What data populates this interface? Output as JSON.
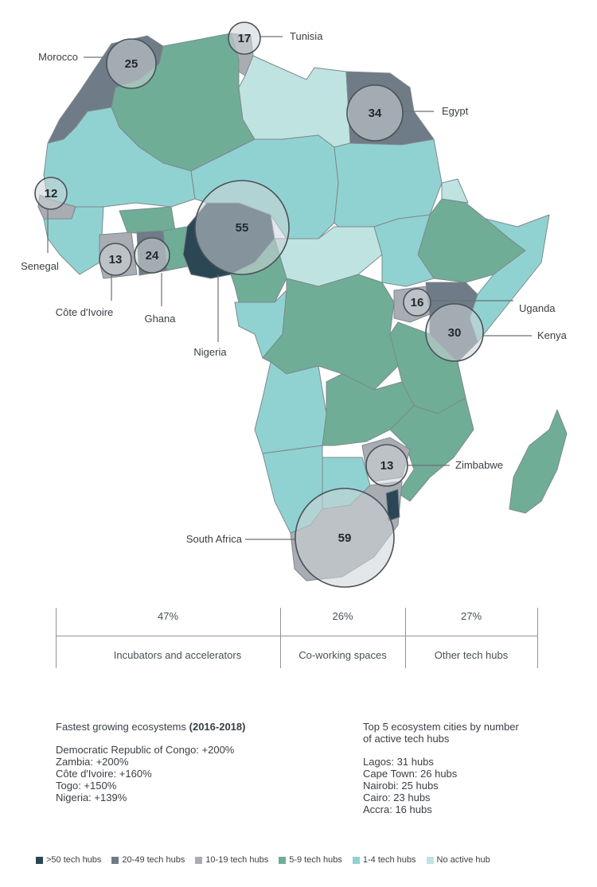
{
  "colors": {
    "over50": "#2b4654",
    "c20_49": "#6f7b87",
    "c10_19": "#a9adb3",
    "c5_9": "#6fad97",
    "c1_4": "#90d2d1",
    "none": "#bfe3e1"
  },
  "hubs": [
    {
      "country": "Morocco",
      "count": "25"
    },
    {
      "country": "Tunisia",
      "count": "17"
    },
    {
      "country": "Egypt",
      "count": "34"
    },
    {
      "country": "Senegal",
      "count": "12"
    },
    {
      "country": "Nigeria",
      "count": "55"
    },
    {
      "country": "Côte d'Ivoire",
      "count": "13"
    },
    {
      "country": "Ghana",
      "count": "24"
    },
    {
      "country": "Uganda",
      "count": "16"
    },
    {
      "country": "Kenya",
      "count": "30"
    },
    {
      "country": "Zimbabwe",
      "count": "13"
    },
    {
      "country": "South Africa",
      "count": "59"
    }
  ],
  "breakdown": [
    {
      "percent": "47%",
      "label": "Incubators and accelerators"
    },
    {
      "percent": "26%",
      "label": "Co-working spaces"
    },
    {
      "percent": "27%",
      "label": "Other tech hubs"
    }
  ],
  "fastest": {
    "title": "Fastest growing ecosystems",
    "period": "(2016-2018)",
    "items": [
      "Democratic Republic of Congo: +200%",
      "Zambia: +200%",
      "Côte d'Ivoire: +160%",
      "Togo: +150%",
      "Nigeria: +139%"
    ]
  },
  "top5": {
    "title_line1": "Top 5 ecosystem cities by number",
    "title_line2": "of active tech hubs",
    "items": [
      "Lagos: 31 hubs",
      "Cape Town: 26 hubs",
      "Nairobi: 25 hubs",
      "Cairo: 23 hubs",
      "Accra: 16 hubs"
    ]
  },
  "legend": [
    {
      "label": ">50 tech hubs",
      "color": "#2b4654"
    },
    {
      "label": "20-49 tech hubs",
      "color": "#6f7b87"
    },
    {
      "label": "10-19 tech hubs",
      "color": "#a9adb3"
    },
    {
      "label": "5-9 tech hubs",
      "color": "#6fad97"
    },
    {
      "label": "1-4 tech hubs",
      "color": "#90d2d1"
    },
    {
      "label": "No active hub",
      "color": "#bfe3e1"
    }
  ]
}
